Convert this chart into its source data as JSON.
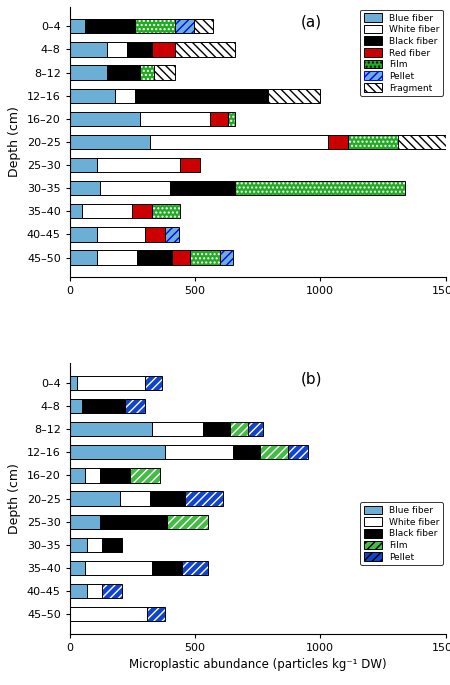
{
  "depths": [
    "0–4",
    "4–8",
    "8–12",
    "12–16",
    "16–20",
    "20–25",
    "25–30",
    "30–35",
    "35–40",
    "40–45",
    "45–50"
  ],
  "chart_a": {
    "blue": [
      60,
      150,
      150,
      180,
      280,
      320,
      110,
      120,
      50,
      110,
      110
    ],
    "white": [
      0,
      80,
      0,
      80,
      280,
      710,
      330,
      280,
      200,
      190,
      160
    ],
    "black": [
      200,
      100,
      130,
      530,
      0,
      0,
      0,
      260,
      0,
      0,
      140
    ],
    "red": [
      0,
      90,
      0,
      0,
      70,
      80,
      80,
      0,
      80,
      80,
      70
    ],
    "film": [
      160,
      0,
      55,
      0,
      30,
      200,
      0,
      680,
      110,
      0,
      120
    ],
    "pellet": [
      75,
      0,
      0,
      0,
      0,
      0,
      0,
      0,
      0,
      55,
      50
    ],
    "fragment": [
      75,
      240,
      85,
      210,
      0,
      240,
      0,
      0,
      0,
      0,
      0
    ]
  },
  "chart_b": {
    "blue": [
      30,
      50,
      330,
      380,
      60,
      200,
      120,
      70,
      60,
      70,
      0
    ],
    "white": [
      270,
      0,
      200,
      270,
      60,
      120,
      0,
      60,
      270,
      60,
      310
    ],
    "black": [
      0,
      170,
      110,
      110,
      120,
      140,
      270,
      80,
      120,
      0,
      0
    ],
    "film": [
      0,
      0,
      70,
      110,
      120,
      0,
      160,
      0,
      0,
      0,
      0
    ],
    "pellet": [
      70,
      80,
      60,
      80,
      0,
      150,
      0,
      0,
      100,
      80,
      70
    ]
  },
  "xlim": [
    0,
    1500
  ],
  "xticks": [
    0,
    500,
    1000,
    1500
  ],
  "blue_color": "#6baed6",
  "white_color": "#ffffff",
  "black_color": "#000000",
  "red_color": "#cc0000",
  "film_color_a": "#22aa22",
  "film_color_b": "#44bb44",
  "pellet_color": "#1144cc",
  "xlabel": "Microplastic abundance (particles kg⁻¹ DW)",
  "ylabel": "Depth (cm)"
}
